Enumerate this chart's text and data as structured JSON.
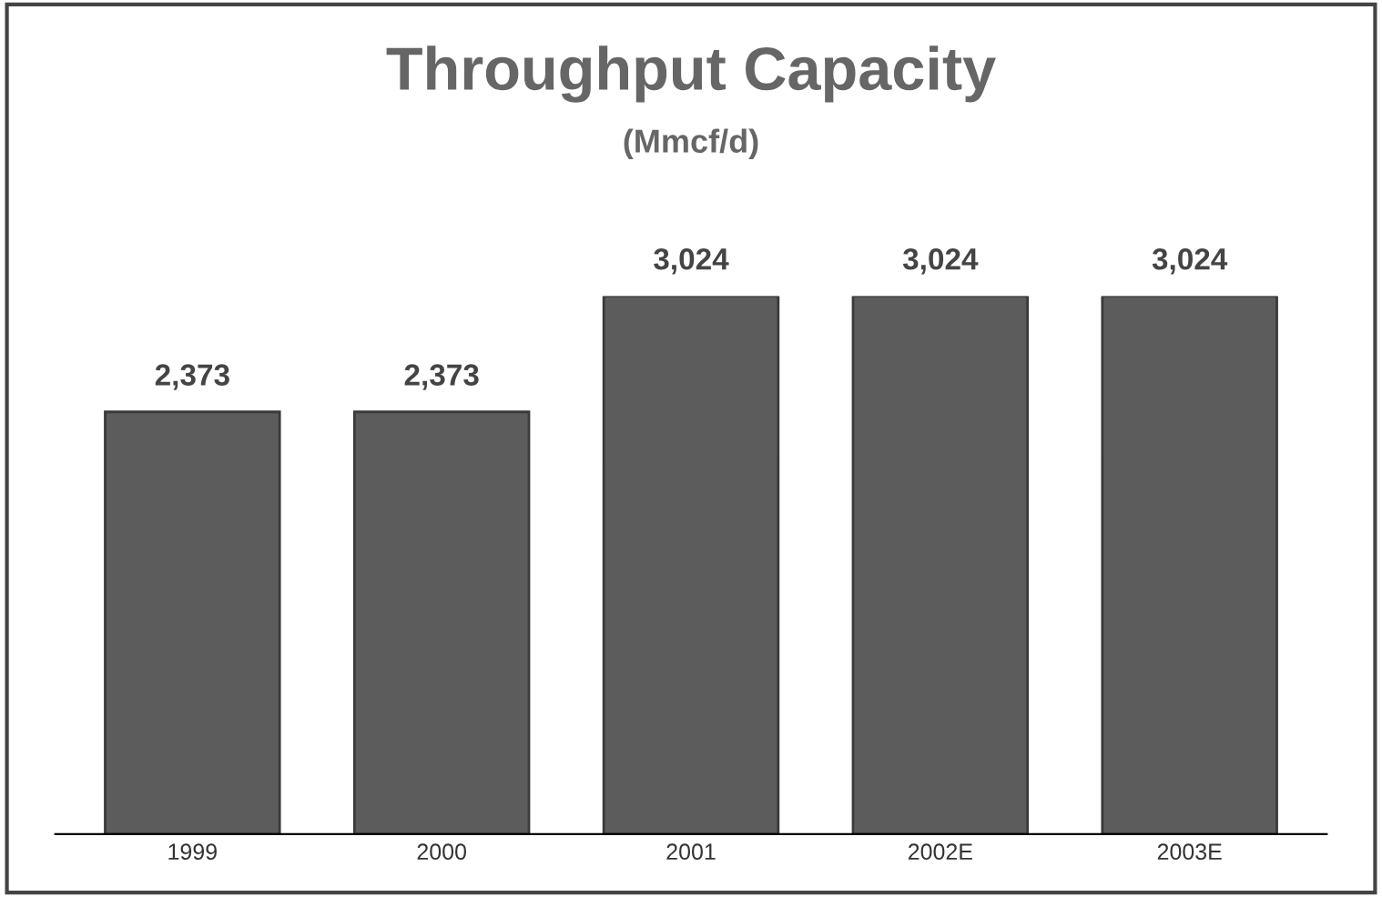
{
  "chart_data": {
    "type": "bar",
    "title": "Throughput Capacity",
    "subtitle": "(Mmcf/d)",
    "categories": [
      "1999",
      "2000",
      "2001",
      "2002E",
      "2003E"
    ],
    "values": [
      2373,
      2373,
      3024,
      3024,
      3024
    ],
    "value_labels": [
      "2,373",
      "2,373",
      "3,024",
      "3,024",
      "3,024"
    ],
    "color": "#5c5c5c",
    "grid": false,
    "legend": false,
    "tick_labels": "x"
  }
}
